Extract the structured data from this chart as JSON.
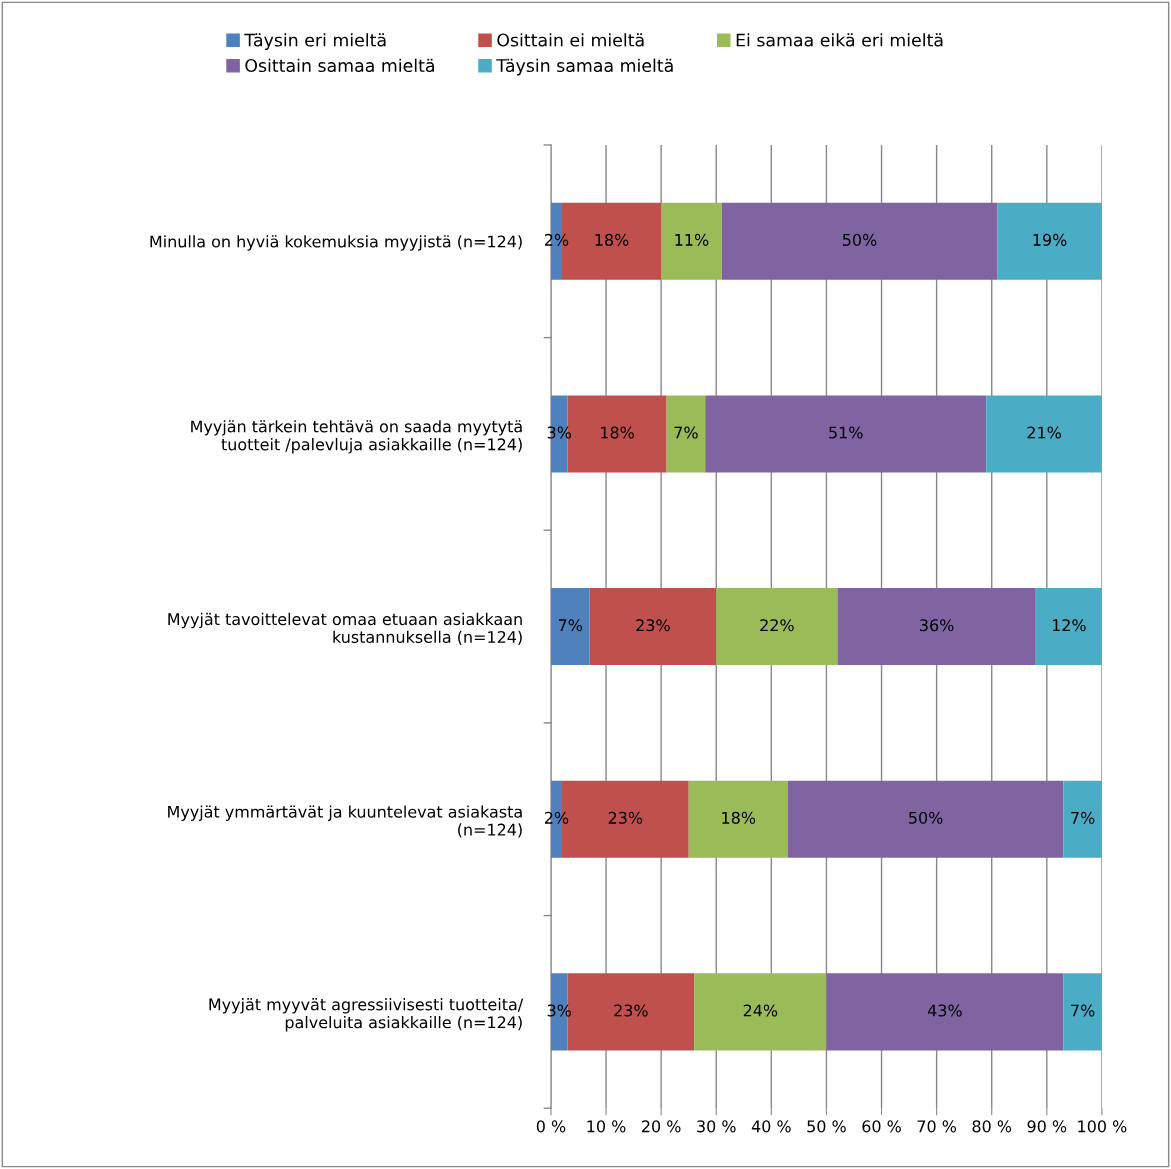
{
  "chart_data": {
    "type": "bar",
    "orientation": "horizontal",
    "stacked": true,
    "grid": "x",
    "legend": "top",
    "categories": [
      "Minulla on hyviä kokemuksia myyjistä (n=124)",
      "Myyjän tärkein tehtävä on saada myytytä tuotteit /palevluja asiakkaille (n=124)",
      "Myyjät tavoittelevat omaa etuaan asiakkaan kustannuksella (n=124)",
      "Myyjät ymmärtävät ja kuuntelevat asiakasta (n=124)",
      "Myyjät myyvät agressiivisesti tuotteita/ palveluita asiakkaille (n=124)"
    ],
    "series": [
      {
        "name": "Täysin eri mieltä",
        "color": "#4f81bd",
        "values": [
          2,
          3,
          7,
          2,
          3
        ],
        "value_labels": [
          "2%",
          "3%",
          "7%",
          "2%",
          "3%"
        ]
      },
      {
        "name": "Osittain ei mieltä",
        "color": "#c0504d",
        "values": [
          18,
          18,
          23,
          23,
          23
        ],
        "value_labels": [
          "18%",
          "18%",
          "23%",
          "23%",
          "23%"
        ]
      },
      {
        "name": "Ei samaa eikä eri mieltä",
        "color": "#9bbb59",
        "values": [
          11,
          7,
          22,
          18,
          24
        ],
        "value_labels": [
          "11%",
          "7%",
          "22%",
          "18%",
          "24%"
        ]
      },
      {
        "name": "Osittain samaa mieltä",
        "color": "#8064a2",
        "values": [
          50,
          51,
          36,
          50,
          43
        ],
        "value_labels": [
          "50%",
          "51%",
          "36%",
          "50%",
          "43%"
        ]
      },
      {
        "name": "Täysin samaa mieltä",
        "color": "#4bacc6",
        "values": [
          19,
          21,
          12,
          7,
          7
        ],
        "value_labels": [
          "19%",
          "21%",
          "12%",
          "7%",
          "7%"
        ]
      }
    ],
    "xlim": [
      0,
      100
    ],
    "xticks": [
      {
        "value": 0,
        "label": "0 %"
      },
      {
        "value": 10,
        "label": "10 %"
      },
      {
        "value": 20,
        "label": "20 %"
      },
      {
        "value": 30,
        "label": "30 %"
      },
      {
        "value": 40,
        "label": "40 %"
      },
      {
        "value": 50,
        "label": "50 %"
      },
      {
        "value": 60,
        "label": "60 %"
      },
      {
        "value": 70,
        "label": "70 %"
      },
      {
        "value": 80,
        "label": "80 %"
      },
      {
        "value": 90,
        "label": "90 %"
      },
      {
        "value": 100,
        "label": "100 %"
      }
    ]
  }
}
